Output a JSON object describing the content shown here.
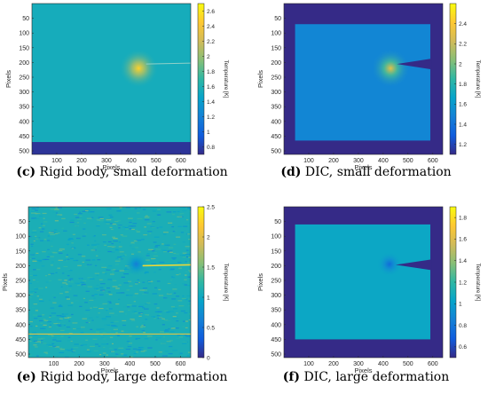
{
  "colorbar_gradient": [
    "#352a87",
    "#0f5cdd",
    "#1481d6",
    "#06a4ca",
    "#2eb7a4",
    "#87bf77",
    "#d1bb59",
    "#fec832",
    "#f9fb0e"
  ],
  "chart_data": [
    {
      "type": "heatmap",
      "panel_label": "(c)",
      "caption": "Rigid body, small deformation",
      "xlabel": "Pixels",
      "ylabel": "Pixels",
      "x_ticks": [
        100,
        200,
        300,
        400,
        500,
        600
      ],
      "xlim": [
        0,
        640
      ],
      "y_ticks": [
        50,
        100,
        150,
        200,
        250,
        300,
        350,
        400,
        450,
        500
      ],
      "ylim": [
        0,
        512
      ],
      "colorbar_label": "Temperature [K]",
      "colorbar_ticks": [
        "2.6",
        "2.4",
        "2.2",
        "2",
        "1.8",
        "1.6",
        "1.4",
        "1.2",
        "1",
        "0.8"
      ],
      "clim": [
        0.7,
        2.7
      ],
      "background_value": 1.55,
      "hotspot": {
        "x": 430,
        "y": 220,
        "peak": 2.5
      },
      "crack": {
        "x_start": 460,
        "x_end": 640,
        "y": 205
      },
      "bottom_band_y": 470
    },
    {
      "type": "heatmap",
      "panel_label": "(d)",
      "caption": "DIC, small deformation",
      "xlabel": "Pixels",
      "ylabel": "Pixels",
      "x_ticks": [
        100,
        200,
        300,
        400,
        500,
        600
      ],
      "xlim": [
        0,
        640
      ],
      "y_ticks": [
        50,
        100,
        150,
        200,
        250,
        300,
        350,
        400,
        450,
        500
      ],
      "ylim": [
        0,
        512
      ],
      "colorbar_label": "Temperature [K]",
      "colorbar_ticks": [
        "2.4",
        "2.2",
        "2",
        "1.8",
        "1.6",
        "1.4",
        "1.2"
      ],
      "clim": [
        1.1,
        2.6
      ],
      "background_value": 1.5,
      "hotspot": {
        "x": 430,
        "y": 220,
        "peak": 2.3
      },
      "specimen": {
        "x": [
          45,
          590
        ],
        "y": [
          70,
          465
        ]
      },
      "notch_tip": {
        "x": 455,
        "y": 205
      }
    },
    {
      "type": "heatmap",
      "panel_label": "(e)",
      "caption": "Rigid body, large deformation",
      "xlabel": "Pixels",
      "ylabel": "Pixels",
      "x_ticks": [
        100,
        200,
        300,
        400,
        500,
        600
      ],
      "xlim": [
        0,
        640
      ],
      "y_ticks": [
        50,
        100,
        150,
        200,
        250,
        300,
        350,
        400,
        450,
        500
      ],
      "ylim": [
        0,
        512
      ],
      "colorbar_label": "Temperature [K]",
      "colorbar_ticks": [
        "2.5",
        "2",
        "1.5",
        "1",
        "0.5",
        "0"
      ],
      "clim": [
        0,
        2.5
      ],
      "background_value": 1.1,
      "hotspot": {
        "x": 425,
        "y": 195,
        "peak": 0.6
      },
      "crack": {
        "x_start": 450,
        "x_end": 640,
        "y": 200
      },
      "horizontal_line_y": 432
    },
    {
      "type": "heatmap",
      "panel_label": "(f)",
      "caption": "DIC, large deformation",
      "xlabel": "Pixels",
      "ylabel": "Pixels",
      "x_ticks": [
        100,
        200,
        300,
        400,
        500,
        600
      ],
      "xlim": [
        0,
        640
      ],
      "y_ticks": [
        50,
        100,
        150,
        200,
        250,
        300,
        350,
        400,
        450,
        500
      ],
      "ylim": [
        0,
        512
      ],
      "colorbar_label": "Temperature [K]",
      "colorbar_ticks": [
        "1.8",
        "1.6",
        "1.4",
        "1.2",
        "1",
        "0.8",
        "0.6"
      ],
      "clim": [
        0.5,
        1.9
      ],
      "background_value": 1.05,
      "hotspot": {
        "x": 425,
        "y": 195,
        "peak": 0.75
      },
      "specimen": {
        "x": [
          45,
          590
        ],
        "y": [
          60,
          450
        ]
      },
      "notch_tip": {
        "x": 450,
        "y": 197
      }
    }
  ]
}
